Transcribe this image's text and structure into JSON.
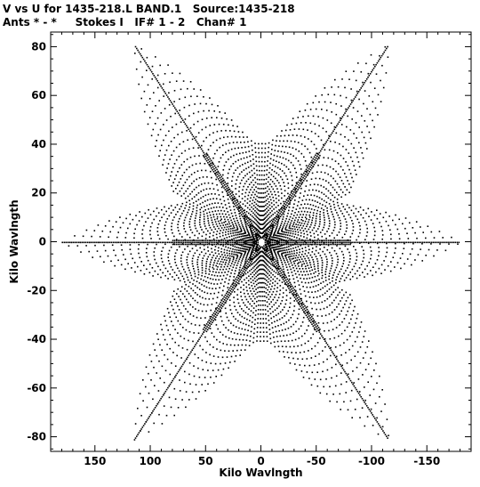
{
  "header": {
    "line1": "V vs U for 1435-218.L BAND.1   Source:1435-218",
    "line2": "Ants * - *     Stokes I   IF# 1 - 2   Chan# 1"
  },
  "colors": {
    "background": "#ffffff",
    "ink": "#000000"
  },
  "chart_data": {
    "type": "scatter",
    "title": "V vs U for 1435-218.L BAND.1   Source:1435-218",
    "subtitle": "Ants * - *     Stokes I   IF# 1 - 2   Chan# 1",
    "xlabel": "Kilo Wavlngth",
    "ylabel": "Kilo Wavlngth",
    "xlim": [
      190,
      -190
    ],
    "ylim": [
      -86,
      86
    ],
    "xaxis_reversed": true,
    "xticks": [
      150,
      100,
      50,
      0,
      -50,
      -100,
      -150
    ],
    "yticks": [
      80,
      60,
      40,
      20,
      0,
      -20,
      -40,
      -60,
      -80
    ],
    "xtick_labels": [
      "150",
      "100",
      "50",
      "0",
      "-50",
      "-100",
      "-150"
    ],
    "ytick_labels": [
      "80",
      "60",
      "40",
      "20",
      "0",
      "-20",
      "-40",
      "-60",
      "-80"
    ],
    "grid": false,
    "legend": "none",
    "pattern": "six-armed star (snowflake) uv-coverage, dense radial spokes",
    "arm_tips": [
      [
        -115,
        81
      ],
      [
        115,
        81
      ],
      [
        -115,
        -81
      ],
      [
        115,
        -81
      ],
      [
        180,
        0
      ],
      [
        -180,
        0
      ]
    ],
    "x": [
      0,
      10,
      20,
      30,
      40,
      52,
      64,
      76,
      88,
      100,
      110,
      115,
      -10,
      -20,
      -30,
      -40,
      -52,
      -64,
      -76,
      -88,
      -100,
      -110,
      -115,
      0,
      10,
      20,
      30,
      40,
      52,
      64,
      76,
      88,
      100,
      110,
      115,
      -10,
      -20,
      -30,
      -40,
      -52,
      -64,
      -76,
      -88,
      -100,
      -110,
      -115,
      40,
      80,
      120,
      150,
      175,
      -40,
      -80,
      -120,
      -150,
      -175
    ],
    "y": [
      10,
      17,
      24,
      31,
      38,
      45,
      53,
      60,
      67,
      73,
      78,
      81,
      17,
      24,
      31,
      38,
      45,
      53,
      60,
      67,
      73,
      78,
      81,
      -10,
      -17,
      -24,
      -31,
      -38,
      -45,
      -53,
      -60,
      -67,
      -73,
      -78,
      -81,
      -17,
      -24,
      -31,
      -38,
      -45,
      -53,
      -60,
      -67,
      -73,
      -78,
      -81,
      0,
      1,
      2,
      3,
      3,
      0,
      -1,
      -2,
      -3,
      -3
    ]
  },
  "axes": {
    "bottom_title": "Kilo Wavlngth",
    "left_title": "Kilo Wavlngth"
  }
}
